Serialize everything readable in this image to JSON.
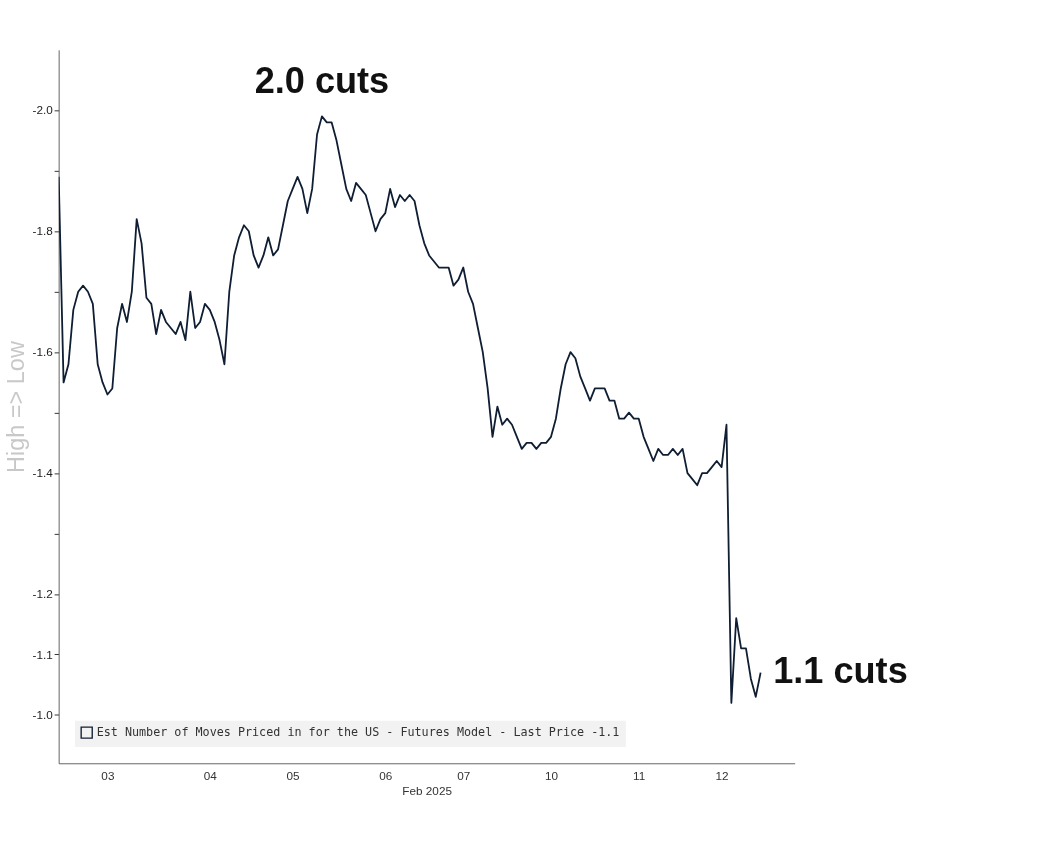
{
  "chart_data": {
    "type": "line",
    "xlabel": "Feb 2025",
    "ylabel": "High => Low",
    "categories": [
      null,
      null,
      null,
      null,
      null,
      null,
      null,
      null,
      null,
      null,
      "03",
      null,
      null,
      null,
      null,
      null,
      null,
      null,
      null,
      null,
      null,
      null,
      null,
      null,
      null,
      null,
      null,
      null,
      null,
      null,
      null,
      "04",
      null,
      null,
      null,
      null,
      null,
      null,
      null,
      null,
      null,
      null,
      null,
      null,
      null,
      null,
      null,
      null,
      "05",
      null,
      null,
      null,
      null,
      null,
      null,
      null,
      null,
      null,
      null,
      null,
      null,
      null,
      null,
      null,
      null,
      null,
      null,
      "06",
      null,
      null,
      null,
      null,
      null,
      null,
      null,
      null,
      null,
      null,
      null,
      null,
      null,
      null,
      null,
      "07",
      null,
      null,
      null,
      null,
      null,
      null,
      null,
      null,
      null,
      null,
      null,
      null,
      null,
      null,
      null,
      null,
      null,
      "10",
      null,
      null,
      null,
      null,
      null,
      null,
      null,
      null,
      null,
      null,
      null,
      null,
      null,
      null,
      null,
      null,
      null,
      "11",
      null,
      null,
      null,
      null,
      null,
      null,
      null,
      null,
      null,
      null,
      null,
      null,
      null,
      null,
      null,
      null,
      "12",
      null,
      null,
      null,
      null,
      null,
      null,
      null,
      null,
      null,
      null,
      null,
      null,
      null,
      null,
      null
    ],
    "series": [
      {
        "name": "Est Number of Moves Priced in for the US - Futures Model - Last Price -1.1",
        "color": "#0f1e33",
        "values": [
          -1.89,
          -1.55,
          -1.58,
          -1.67,
          -1.7,
          -1.71,
          -1.7,
          -1.68,
          -1.58,
          -1.55,
          -1.53,
          -1.54,
          -1.64,
          -1.68,
          -1.65,
          -1.7,
          -1.82,
          -1.78,
          -1.69,
          -1.68,
          -1.63,
          -1.67,
          -1.65,
          -1.64,
          -1.63,
          -1.65,
          -1.62,
          -1.7,
          -1.64,
          -1.65,
          -1.68,
          -1.67,
          -1.65,
          -1.62,
          -1.58,
          -1.7,
          -1.76,
          -1.79,
          -1.81,
          -1.8,
          -1.76,
          -1.74,
          -1.76,
          -1.79,
          -1.76,
          -1.77,
          -1.81,
          -1.85,
          -1.87,
          -1.89,
          -1.87,
          -1.83,
          -1.87,
          -1.96,
          -1.99,
          -1.98,
          -1.98,
          -1.95,
          -1.91,
          -1.87,
          -1.85,
          -1.88,
          -1.87,
          -1.86,
          -1.83,
          -1.8,
          -1.82,
          -1.83,
          -1.87,
          -1.84,
          -1.86,
          -1.85,
          -1.86,
          -1.85,
          -1.81,
          -1.78,
          -1.76,
          -1.75,
          -1.74,
          -1.74,
          -1.74,
          -1.71,
          -1.72,
          -1.74,
          -1.7,
          -1.68,
          -1.64,
          -1.6,
          -1.54,
          -1.46,
          -1.51,
          -1.48,
          -1.49,
          -1.48,
          -1.46,
          -1.44,
          -1.45,
          -1.45,
          -1.44,
          -1.45,
          -1.45,
          -1.46,
          -1.49,
          -1.54,
          -1.58,
          -1.6,
          -1.59,
          -1.56,
          -1.54,
          -1.52,
          -1.54,
          -1.54,
          -1.54,
          -1.52,
          -1.52,
          -1.49,
          -1.49,
          -1.5,
          -1.49,
          -1.49,
          -1.46,
          -1.44,
          -1.42,
          -1.44,
          -1.43,
          -1.43,
          -1.44,
          -1.43,
          -1.44,
          -1.4,
          -1.39,
          -1.38,
          -1.4,
          -1.4,
          -1.41,
          -1.42,
          -1.41,
          -1.48,
          -1.02,
          -1.16,
          -1.11,
          -1.11,
          -1.06,
          -1.03,
          -1.07,
          null,
          null,
          null,
          null,
          null,
          null,
          null
        ]
      }
    ],
    "ylim": [
      -0.92,
      -2.1
    ],
    "yticks": [
      {
        "value": -2.0,
        "label": "-2.0"
      },
      {
        "value": -1.9,
        "label": null
      },
      -1.8,
      {
        "value": -1.7,
        "label": null
      },
      -1.6,
      {
        "value": -1.5,
        "label": null
      },
      -1.4,
      {
        "value": -1.3,
        "label": null
      },
      -1.2,
      {
        "value": -1.1,
        "label": "-1.1"
      },
      {
        "value": -1.0,
        "label": "-1.0"
      }
    ],
    "annotations": [
      "2.0 cuts",
      "1.1 cuts"
    ],
    "legend": "bottom left",
    "grid": false,
    "line_style": "solid",
    "marker": "none"
  }
}
